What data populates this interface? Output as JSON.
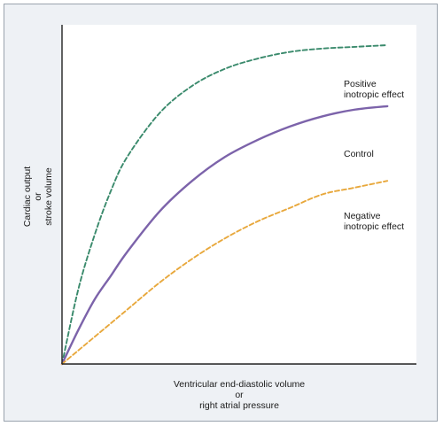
{
  "chart_data": {
    "type": "line",
    "title": "",
    "xlabel_lines": [
      "Ventricular end-diastolic volume",
      "or",
      "right atrial pressure"
    ],
    "ylabel_lines": [
      "Cardiac output",
      "or",
      "stroke volume"
    ],
    "xlim": [
      0,
      100
    ],
    "ylim": [
      0,
      100
    ],
    "ticks_shown": false,
    "grid": false,
    "legend": "none (curves labeled inline)",
    "series": [
      {
        "name": "Positive inotropic effect",
        "label_lines": [
          "Positive",
          "inotropic effect"
        ],
        "color": "#3a8a6c",
        "style": "dashed",
        "x": [
          0,
          5,
          10,
          15,
          20,
          30,
          40,
          50,
          60,
          70,
          80,
          90,
          100
        ],
        "y": [
          0,
          22,
          38,
          51,
          61,
          74,
          82,
          87,
          90,
          92,
          93,
          93.5,
          94
        ]
      },
      {
        "name": "Control",
        "label_lines": [
          "Control"
        ],
        "color": "#7c63aa",
        "style": "solid",
        "x": [
          0,
          5,
          10,
          15,
          20,
          30,
          40,
          50,
          60,
          70,
          80,
          90,
          100
        ],
        "y": [
          0,
          10,
          19,
          26,
          33,
          45,
          54,
          61,
          66,
          70,
          73,
          75,
          76
        ]
      },
      {
        "name": "Negative inotropic effect",
        "label_lines": [
          "Negative",
          "inotropic effect"
        ],
        "color": "#e8a83c",
        "style": "dashed",
        "x": [
          0,
          5,
          10,
          15,
          20,
          30,
          40,
          50,
          60,
          70,
          80,
          90,
          100
        ],
        "y": [
          0,
          4,
          8,
          12,
          16,
          24,
          31,
          37,
          42,
          46,
          50,
          52,
          54
        ]
      }
    ]
  }
}
